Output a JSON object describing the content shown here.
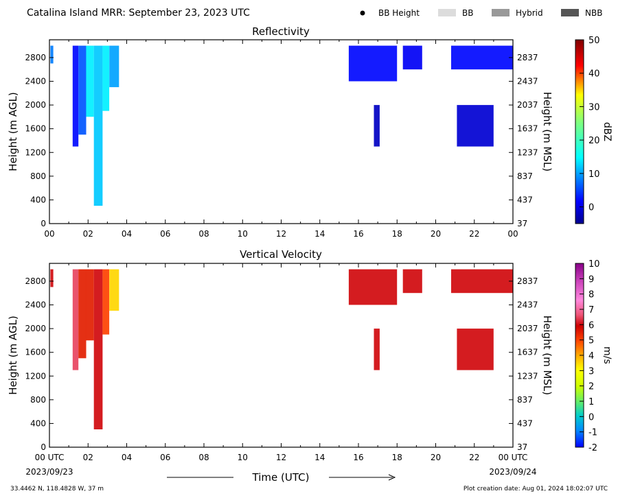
{
  "header": {
    "title": "Catalina Island MRR:  September 23, 2023 UTC",
    "legend": [
      {
        "label": "BB Height",
        "kind": "dot",
        "color": "#000000"
      },
      {
        "label": "BB",
        "kind": "swatch",
        "color": "#dcdcdc"
      },
      {
        "label": "Hybrid",
        "kind": "swatch",
        "color": "#999999"
      },
      {
        "label": "NBB",
        "kind": "swatch",
        "color": "#555555"
      }
    ]
  },
  "axes": {
    "left_label": "Height (m AGL)",
    "right_label": "Height (m MSL)",
    "left_ticks": [
      0,
      400,
      800,
      1200,
      1600,
      2000,
      2400,
      2800
    ],
    "right_ticks": [
      "37",
      "437",
      "837",
      "1237",
      "1637",
      "2037",
      "2437",
      "2837"
    ],
    "x_ticks_top": [
      "00",
      "02",
      "04",
      "06",
      "08",
      "10",
      "12",
      "14",
      "16",
      "18",
      "20",
      "22",
      "00"
    ],
    "x_ticks_bottom": [
      "00 UTC",
      "02",
      "04",
      "06",
      "08",
      "10",
      "12",
      "14",
      "16",
      "18",
      "20",
      "22",
      "00 UTC"
    ],
    "date_start": "2023/09/23",
    "date_end": "2023/09/24",
    "xlabel": "Time (UTC)"
  },
  "footer": {
    "location": "33.4462 N, 118.4828 W, 37 m",
    "created": "Plot creation date: Aug 01, 2024 18:02:07 UTC"
  },
  "chart_data": [
    {
      "type": "heatmap",
      "title": "Reflectivity",
      "xlim": [
        0,
        24
      ],
      "ylim": [
        0,
        3100
      ],
      "x_unit": "hours UTC",
      "colorbar": {
        "label": "dBZ",
        "range": [
          -5,
          50
        ],
        "ticks": [
          0,
          10,
          20,
          30,
          40,
          50
        ]
      },
      "echo_regions": [
        {
          "t": [
            0.05,
            0.2
          ],
          "h": [
            2700,
            3000
          ],
          "value": 8
        },
        {
          "t": [
            1.2,
            1.5
          ],
          "h": [
            1300,
            3000
          ],
          "value": 2
        },
        {
          "t": [
            1.5,
            1.9
          ],
          "h": [
            1500,
            3000
          ],
          "value": 6
        },
        {
          "t": [
            1.9,
            2.3
          ],
          "h": [
            1800,
            3000
          ],
          "value": 14
        },
        {
          "t": [
            2.3,
            2.75
          ],
          "h": [
            300,
            3000
          ],
          "value": 12
        },
        {
          "t": [
            2.75,
            3.1
          ],
          "h": [
            1900,
            3000
          ],
          "value": 14
        },
        {
          "t": [
            3.1,
            3.6
          ],
          "h": [
            2300,
            3000
          ],
          "value": 10
        },
        {
          "t": [
            15.5,
            18.0
          ],
          "h": [
            2400,
            3000
          ],
          "value": 2
        },
        {
          "t": [
            16.8,
            17.1
          ],
          "h": [
            1300,
            2000
          ],
          "value": -2
        },
        {
          "t": [
            18.3,
            19.3
          ],
          "h": [
            2600,
            3000
          ],
          "value": 1
        },
        {
          "t": [
            20.8,
            24.0
          ],
          "h": [
            2600,
            3000
          ],
          "value": 2
        },
        {
          "t": [
            21.1,
            23.0
          ],
          "h": [
            1300,
            2000
          ],
          "value": -1
        }
      ]
    },
    {
      "type": "heatmap",
      "title": "Vertical Velocity",
      "xlim": [
        0,
        24
      ],
      "ylim": [
        0,
        3100
      ],
      "x_unit": "hours UTC",
      "colorbar": {
        "label": "m/s",
        "range": [
          -2,
          10
        ],
        "ticks": [
          -2,
          -1,
          0,
          1,
          2,
          3,
          4,
          5,
          6,
          7,
          8,
          9,
          10
        ]
      },
      "echo_regions": [
        {
          "t": [
            0.05,
            0.2
          ],
          "h": [
            2700,
            3000
          ],
          "value": 6
        },
        {
          "t": [
            1.2,
            1.5
          ],
          "h": [
            1300,
            3000
          ],
          "value": 6.5
        },
        {
          "t": [
            1.5,
            1.9
          ],
          "h": [
            1500,
            3000
          ],
          "value": 5.5
        },
        {
          "t": [
            1.9,
            2.3
          ],
          "h": [
            1800,
            3000
          ],
          "value": 5.5
        },
        {
          "t": [
            2.3,
            2.75
          ],
          "h": [
            300,
            3000
          ],
          "value": 6
        },
        {
          "t": [
            2.75,
            3.1
          ],
          "h": [
            1900,
            3000
          ],
          "value": 5
        },
        {
          "t": [
            3.1,
            3.6
          ],
          "h": [
            2300,
            3000
          ],
          "value": 3.5
        },
        {
          "t": [
            15.5,
            18.0
          ],
          "h": [
            2400,
            3000
          ],
          "value": 6
        },
        {
          "t": [
            16.8,
            17.1
          ],
          "h": [
            1300,
            2000
          ],
          "value": 6
        },
        {
          "t": [
            18.3,
            19.3
          ],
          "h": [
            2600,
            3000
          ],
          "value": 6
        },
        {
          "t": [
            20.8,
            24.0
          ],
          "h": [
            2600,
            3000
          ],
          "value": 6
        },
        {
          "t": [
            21.1,
            23.0
          ],
          "h": [
            1300,
            2000
          ],
          "value": 6
        }
      ]
    }
  ]
}
